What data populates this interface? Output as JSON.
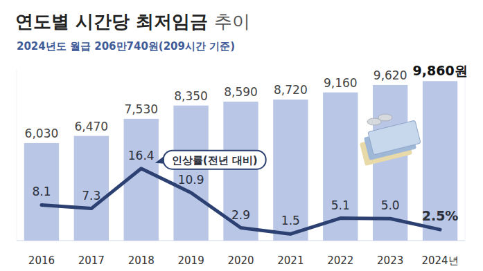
{
  "chart_data": {
    "type": "bar",
    "title": "연도별 시간당 최저임금 추이",
    "subtitle": "2024년도 월급 206만740원(209시간 기준)",
    "categories": [
      "2016",
      "2017",
      "2018",
      "2019",
      "2020",
      "2021",
      "2022",
      "2023",
      "2024년"
    ],
    "series": [
      {
        "type": "bar",
        "color": "#b9c6e6",
        "values": [
          6030,
          6470,
          7530,
          8350,
          8590,
          8720,
          9160,
          9620,
          9860
        ],
        "value_labels": [
          "6,030",
          "6,470",
          "7,530",
          "8,350",
          "8,590",
          "8,720",
          "9,160",
          "9,620",
          "9,860원"
        ]
      },
      {
        "name": "인상률(전년 대비)",
        "type": "line",
        "axis": "y2",
        "color": "#2c4172",
        "line_style": "solid",
        "values": [
          8.1,
          7.3,
          16.4,
          10.9,
          2.9,
          1.5,
          5.1,
          5.0,
          2.5
        ],
        "value_labels": [
          "8.1",
          "7.3",
          "16.4",
          "10.9",
          "2.9",
          "1.5",
          "5.1",
          "5.0",
          "2.5%"
        ]
      }
    ],
    "ylim": [
      0,
      10600
    ],
    "y2lim": [
      0,
      39
    ],
    "data_labels": true,
    "tick_labels": "x",
    "grid": false
  }
}
